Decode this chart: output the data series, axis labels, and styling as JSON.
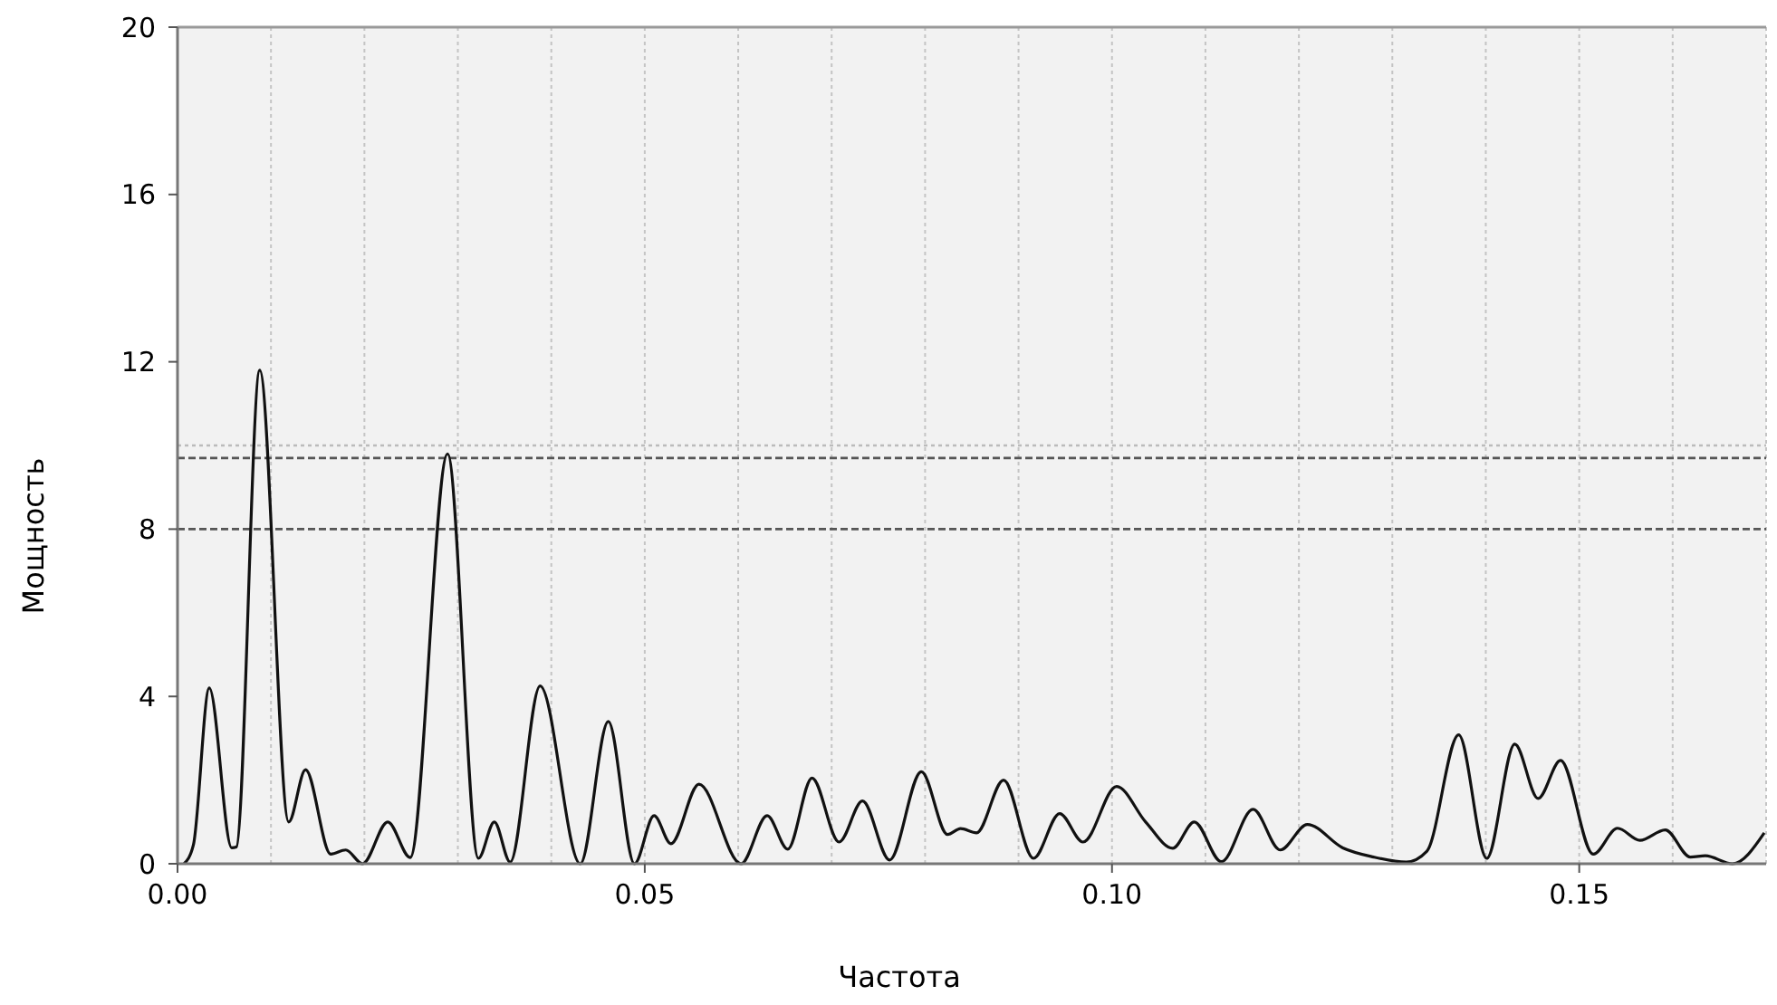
{
  "chart_data": {
    "type": "line",
    "xlabel": "Частота",
    "ylabel": "Мощность",
    "xlim": [
      0,
      0.17
    ],
    "ylim": [
      0,
      20
    ],
    "xticks": [
      {
        "value": 0,
        "label": "0.00"
      },
      {
        "value": 0.05,
        "label": "0.05"
      },
      {
        "value": 0.1,
        "label": "0.10"
      },
      {
        "value": 0.15,
        "label": "0.15"
      }
    ],
    "yticks": [
      0,
      4,
      8,
      12,
      16,
      20
    ],
    "grid": "x",
    "marker": "none",
    "line_style": "solid",
    "ref_lines": [
      {
        "axis": "y",
        "value": 10,
        "color": "#bbbbbb",
        "line_style": "dotted"
      },
      {
        "axis": "y",
        "value": 9.7,
        "color": "#555555",
        "line_style": "dashed"
      },
      {
        "axis": "y",
        "value": 8,
        "color": "#555555",
        "line_style": "dashed"
      }
    ],
    "series": [
      {
        "color": "#111111",
        "x": [
          0.0007,
          0.0017,
          0.0034,
          0.0058,
          0.0063,
          0.0088,
          0.0119,
          0.0137,
          0.0164,
          0.018,
          0.0198,
          0.0225,
          0.0249,
          0.0289,
          0.0322,
          0.0339,
          0.0356,
          0.0388,
          0.0431,
          0.0461,
          0.0489,
          0.051,
          0.0528,
          0.0558,
          0.0603,
          0.0631,
          0.0653,
          0.0679,
          0.0708,
          0.0733,
          0.0762,
          0.0796,
          0.0824,
          0.0838,
          0.0855,
          0.0884,
          0.0916,
          0.0944,
          0.0969,
          0.1005,
          0.1036,
          0.1065,
          0.1088,
          0.1117,
          0.1151,
          0.118,
          0.1209,
          0.1247,
          0.128,
          0.1315,
          0.1337,
          0.1371,
          0.1401,
          0.1431,
          0.1456,
          0.148,
          0.1515,
          0.1541,
          0.1565,
          0.1592,
          0.1619,
          0.1635,
          0.1664,
          0.1698
        ],
        "values": [
          0,
          0.45,
          4.2,
          0.38,
          0.4,
          11.8,
          1.0,
          2.25,
          0.23,
          0.33,
          0,
          1.0,
          0.15,
          9.8,
          0.13,
          1.0,
          0.04,
          4.25,
          0,
          3.4,
          0,
          1.15,
          0.48,
          1.9,
          0,
          1.15,
          0.35,
          2.05,
          0.52,
          1.5,
          0.09,
          2.2,
          0.7,
          0.84,
          0.74,
          2.0,
          0.13,
          1.2,
          0.52,
          1.85,
          1.0,
          0.37,
          1.0,
          0.05,
          1.3,
          0.33,
          0.94,
          0.38,
          0.16,
          0.04,
          0.3,
          3.08,
          0.13,
          2.86,
          1.56,
          2.47,
          0.23,
          0.85,
          0.56,
          0.81,
          0.16,
          0.19,
          0,
          0.74
        ]
      }
    ]
  }
}
